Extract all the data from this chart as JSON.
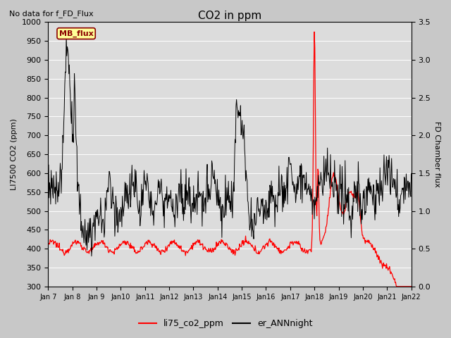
{
  "title": "CO2 in ppm",
  "top_left_text": "No data for f_FD_Flux",
  "ylabel_left": "LI7500 CO2 (ppm)",
  "ylabel_right": "FD Chamber flux",
  "ylim_left": [
    300,
    1000
  ],
  "ylim_right": [
    0.0,
    3.5
  ],
  "yticks_left": [
    300,
    350,
    400,
    450,
    500,
    550,
    600,
    650,
    700,
    750,
    800,
    850,
    900,
    950,
    1000
  ],
  "yticks_right": [
    0.0,
    0.5,
    1.0,
    1.5,
    2.0,
    2.5,
    3.0,
    3.5
  ],
  "background_color": "#c8c8c8",
  "plot_bg_color": "#dcdcdc",
  "line1_color": "red",
  "line2_color": "black",
  "legend_labels": [
    "li75_co2_ppm",
    "er_ANNnight"
  ],
  "mb_flux_label": "MB_flux",
  "mb_flux_facecolor": "#ffff99",
  "mb_flux_edgecolor": "#8B0000",
  "xtick_labels": [
    "Jan 7",
    "Jan 8",
    "Jan 9",
    "Jan10",
    "Jan11",
    "Jan12",
    "Jan13",
    "Jan14",
    "Jan15",
    "Jan16",
    "Jan17",
    "Jan18",
    "Jan19",
    "Jan20",
    "Jan21",
    "Jan22"
  ],
  "figsize": [
    6.4,
    4.8
  ],
  "dpi": 100
}
